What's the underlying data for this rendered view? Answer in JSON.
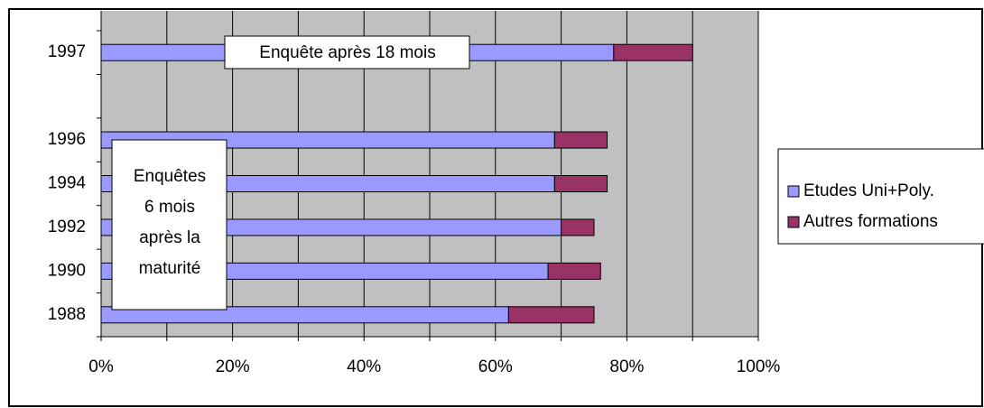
{
  "chart_data": {
    "type": "stacked-barh",
    "categories": [
      "1997",
      null,
      "1996",
      "1994",
      "1992",
      "1990",
      "1988"
    ],
    "series": [
      {
        "name": "Etudes Uni+Poly.",
        "color": "#9999ff",
        "values": [
          78,
          null,
          69,
          69,
          70,
          68,
          62
        ]
      },
      {
        "name": "Autres formations",
        "color": "#993366",
        "values": [
          12,
          null,
          8,
          8,
          5,
          8,
          13
        ]
      }
    ],
    "xlim": [
      0,
      100
    ],
    "xticks": [
      {
        "value": 0,
        "label": "0%"
      },
      {
        "value": 20,
        "label": "20%"
      },
      {
        "value": 40,
        "label": "40%"
      },
      {
        "value": 60,
        "label": "60%"
      },
      {
        "value": 80,
        "label": "80%"
      },
      {
        "value": 100,
        "label": "100%"
      }
    ],
    "grid_ticks": [
      0,
      10,
      20,
      30,
      40,
      50,
      60,
      70,
      80,
      90,
      100
    ],
    "grid": true,
    "legend": "right",
    "annotations": [
      {
        "lines": [
          "Enquête après 18 mois"
        ]
      },
      {
        "lines": [
          "Enquêtes",
          "6 mois",
          "après la",
          "maturité"
        ]
      }
    ]
  }
}
